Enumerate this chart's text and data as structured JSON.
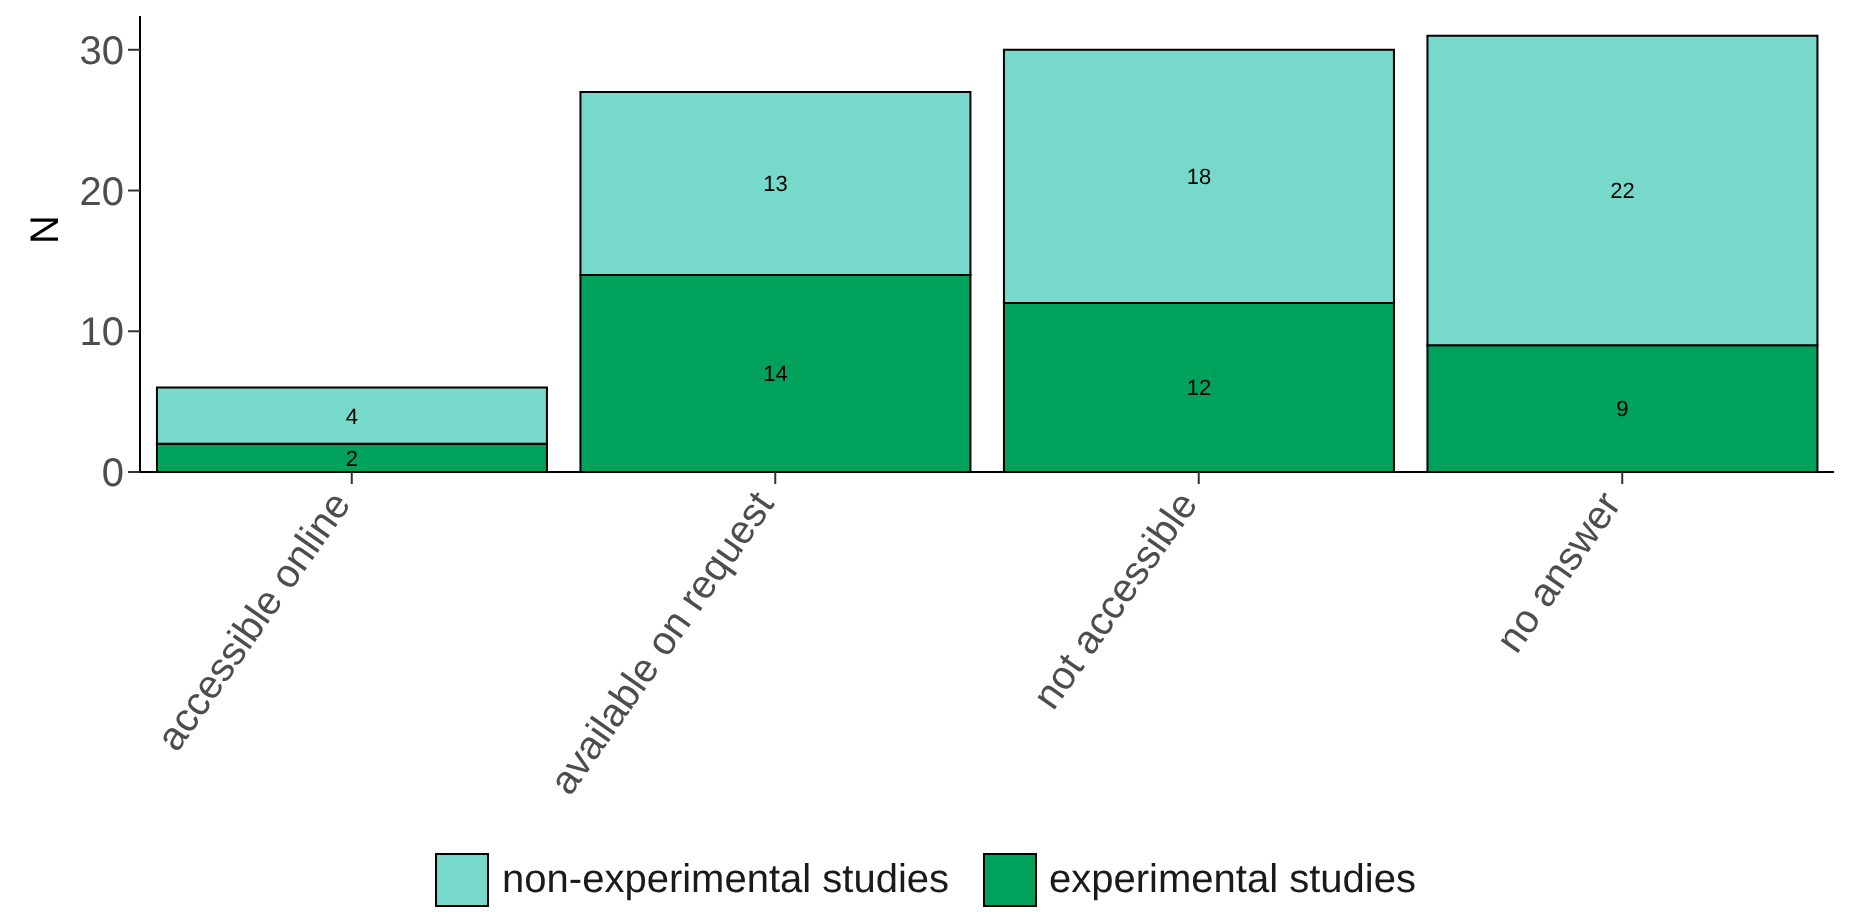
{
  "chart_data": {
    "type": "bar",
    "stacked": true,
    "ylabel": "N",
    "categories": [
      "accessible online",
      "available on request",
      "not accessible",
      "no answer"
    ],
    "series": [
      {
        "name": "experimental studies",
        "color": "#00a15a",
        "values": [
          2,
          14,
          12,
          9
        ]
      },
      {
        "name": "non-experimental studies",
        "color": "#76d9c9",
        "values": [
          4,
          13,
          18,
          22
        ]
      }
    ],
    "ylim": [
      0,
      32.4
    ],
    "yticks": [
      0,
      10,
      20,
      30
    ],
    "grid": false,
    "legend": "bottom",
    "data_labels": true
  }
}
